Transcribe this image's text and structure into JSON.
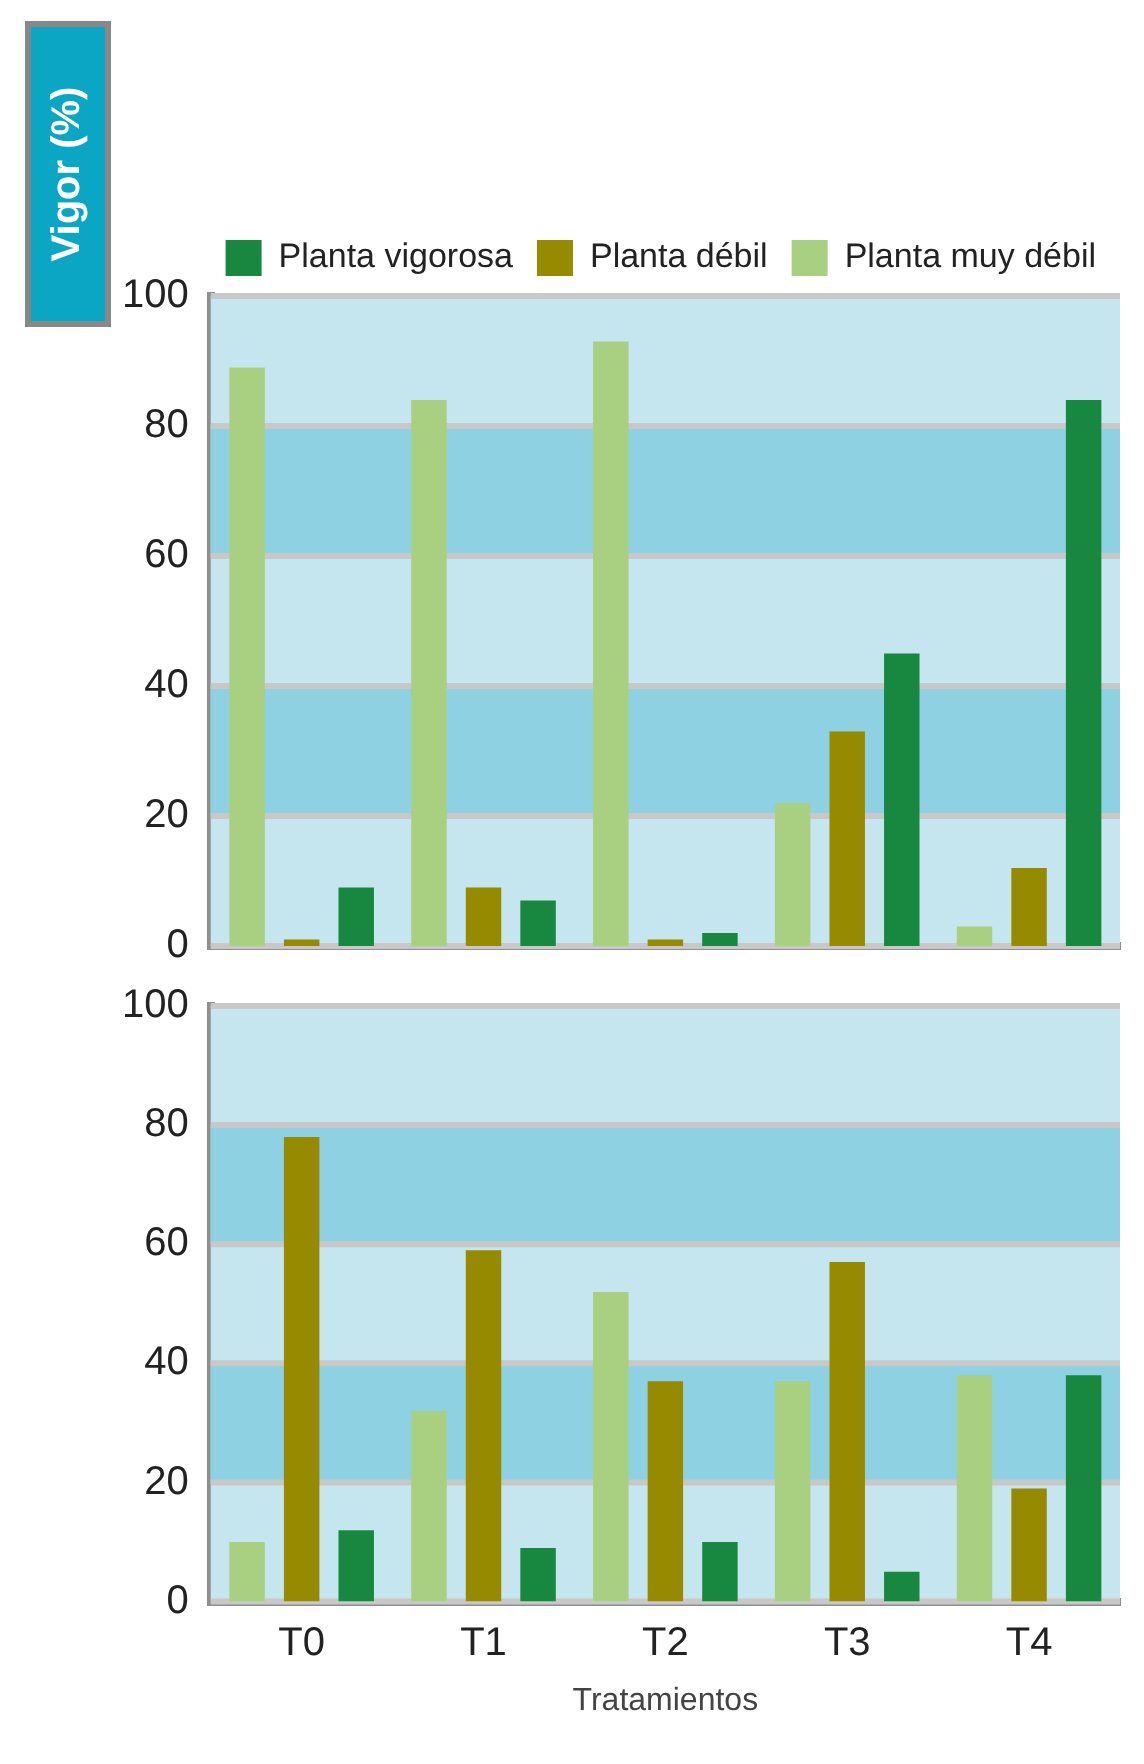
{
  "chart_data": [
    {
      "type": "bar",
      "ylabel": "Vigor (%)",
      "categories": [
        null,
        null,
        null,
        null,
        null
      ],
      "series": [
        {
          "name": "Planta muy débil",
          "color": "#a8d080",
          "values": [
            89,
            84,
            93,
            22,
            3
          ]
        },
        {
          "name": "Planta débil",
          "color": "#968a00",
          "values": [
            1,
            9,
            1,
            33,
            12
          ]
        },
        {
          "name": "Planta vigorosa",
          "color": "#188840",
          "values": [
            9,
            7,
            2,
            45,
            84
          ]
        }
      ],
      "ylim": [
        0,
        100
      ],
      "yticks": [
        0,
        20,
        40,
        60,
        80,
        100
      ],
      "grid": "y",
      "legend": "top right",
      "tick_labels": "y",
      "bands": [
        {
          "axis": "y",
          "from": 20,
          "to": 40,
          "color": "#8dd1e2"
        },
        {
          "axis": "y",
          "from": 60,
          "to": 80,
          "color": "#8dd1e2"
        }
      ]
    },
    {
      "type": "bar",
      "xlabel": "Tratamientos",
      "categories": [
        "T0",
        "T1",
        "T2",
        "T3",
        "T4"
      ],
      "series": [
        {
          "color": "#a8d080",
          "values": [
            10,
            32,
            52,
            37,
            38
          ]
        },
        {
          "color": "#968a00",
          "values": [
            78,
            59,
            37,
            57,
            19
          ]
        },
        {
          "color": "#188840",
          "values": [
            12,
            9,
            10,
            5,
            38
          ]
        }
      ],
      "ylim": [
        0,
        100
      ],
      "yticks": [
        0,
        20,
        40,
        60,
        80,
        100
      ],
      "grid": "y",
      "bands": [
        {
          "axis": "y",
          "from": 20,
          "to": 40,
          "color": "#8dd1e2"
        },
        {
          "axis": "y",
          "from": 60,
          "to": 80,
          "color": "#8dd1e2"
        }
      ]
    }
  ]
}
